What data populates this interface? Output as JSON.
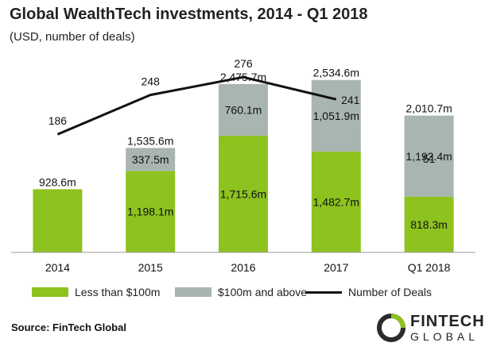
{
  "chart_data": {
    "type": "bar",
    "title": "Global WealthTech investments, 2014 - Q1 2018",
    "subtitle": "(USD, number of deals)",
    "categories": [
      "2014",
      "2015",
      "2016",
      "2017",
      "Q1 2018"
    ],
    "stacked": true,
    "series": [
      {
        "name": "Less than $100m",
        "color": "#8dc21f",
        "values": [
          928.6,
          1198.1,
          1715.6,
          1482.7,
          818.3
        ],
        "labels": [
          "928.6m",
          "1,198.1m",
          "1,715.6m",
          "1,482.7m",
          "818.3m"
        ]
      },
      {
        "name": "$100m and above",
        "color": "#a9b5b1",
        "values": [
          0,
          337.5,
          760.1,
          1051.9,
          1192.4
        ],
        "labels": [
          "",
          "337.5m",
          "760.1m",
          "1,051.9m",
          "1,192.4m"
        ]
      }
    ],
    "totals": [
      928.6,
      1535.6,
      2475.7,
      2534.6,
      2010.7
    ],
    "total_labels": [
      "",
      "1,535.6m",
      "2,475.7m",
      "2,534.6m",
      "2,010.7m"
    ],
    "line_series": {
      "name": "Number of Deals",
      "color": "#111111",
      "values": [
        186,
        248,
        276,
        241,
        51
      ],
      "labels": [
        "186",
        "248",
        "276",
        "241",
        "51"
      ],
      "drawn_line_points": 4
    },
    "ylim": [
      0,
      2800
    ],
    "line_ylim": [
      0,
      300
    ],
    "grid": false,
    "legend_position": "bottom"
  },
  "source": "Source: FinTech Global",
  "logo": {
    "line1": "FINTECH",
    "line2": "GLOBAL",
    "accent_color": "#8dc21f"
  }
}
